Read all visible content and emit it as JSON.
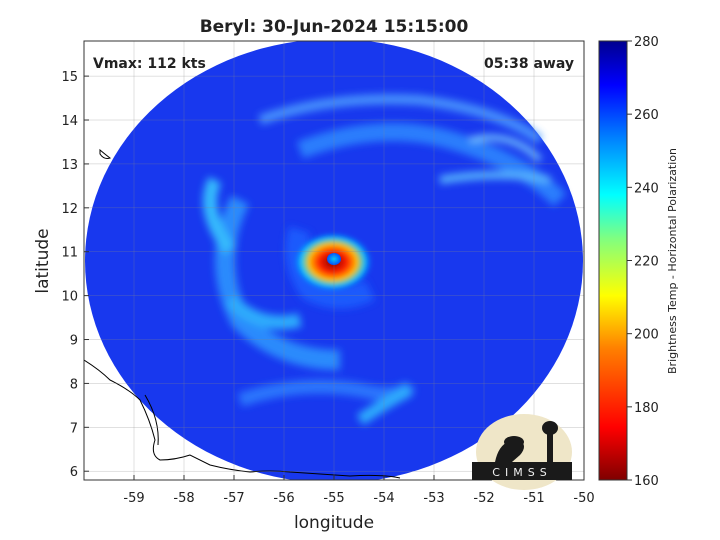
{
  "chart_data": {
    "type": "heatmap",
    "title": "Beryl: 30-Jun-2024 15:15:00",
    "xlabel": "longitude",
    "ylabel": "latitude",
    "xlim": [
      -60,
      -50
    ],
    "ylim": [
      5.8,
      15.8
    ],
    "xticks": [
      -59,
      -58,
      -57,
      -56,
      -55,
      -54,
      -53,
      -52,
      -51,
      -50
    ],
    "yticks": [
      6,
      7,
      8,
      9,
      10,
      11,
      12,
      13,
      14,
      15
    ],
    "grid": true,
    "annotations": {
      "vmax": "Vmax: 112 kts",
      "time_away": "05:38 away"
    },
    "storm_center": {
      "lon": -54.9,
      "lat": 10.8
    },
    "colorbar": {
      "label": "Brightness Temp - Horizontal Polarization",
      "range": [
        160,
        280
      ],
      "ticks": [
        160,
        180,
        200,
        220,
        240,
        260,
        280
      ],
      "colors": [
        "#7f0000",
        "#ff0000",
        "#ff8000",
        "#ffff00",
        "#00ffff",
        "#0080ff",
        "#0000ff",
        "#00008f"
      ]
    },
    "logo_text": "CIMSS"
  }
}
